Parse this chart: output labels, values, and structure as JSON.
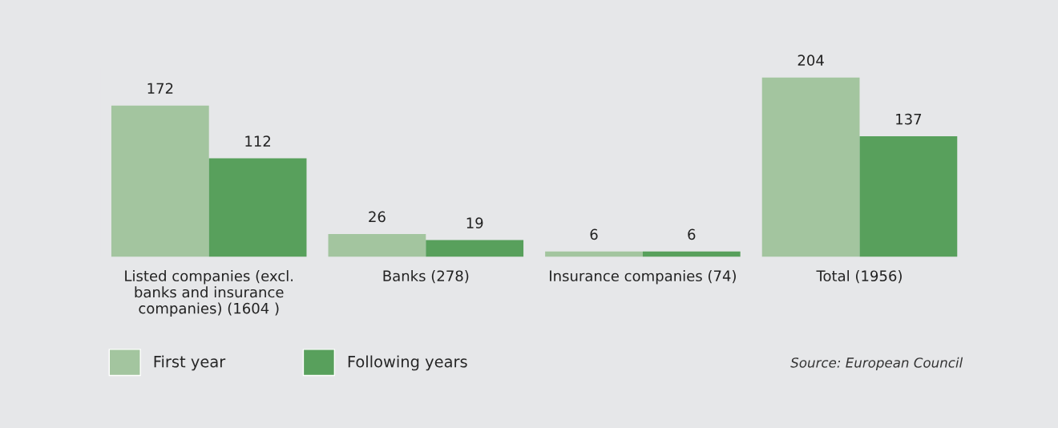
{
  "chart_data": {
    "type": "bar",
    "categories": [
      "Listed companies (excl.\nbanks and insurance\ncompanies) (1604 )",
      "Banks (278)",
      "Insurance companies (74)",
      "Total (1956)"
    ],
    "series": [
      {
        "name": "First year",
        "color": "#a3c59f",
        "values": [
          172,
          26,
          6,
          204
        ]
      },
      {
        "name": "Following years",
        "color": "#58a05c",
        "values": [
          112,
          19,
          6,
          137
        ]
      }
    ],
    "data_labels": true,
    "legend": "bottom left",
    "grid": false,
    "annotations": [
      "Source: European Council"
    ]
  }
}
